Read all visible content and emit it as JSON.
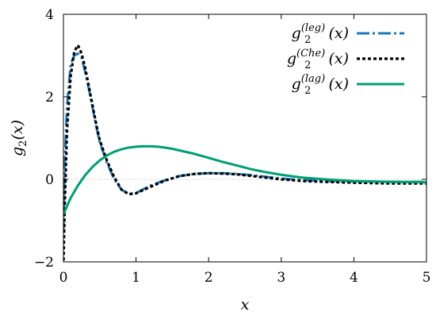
{
  "chart_data": {
    "type": "line",
    "xlabel": "x",
    "ylabel": "g2(x)",
    "ylabel_parts": {
      "base": "g",
      "sub": "2",
      "arg": "(x)"
    },
    "xlim": [
      0,
      5
    ],
    "ylim": [
      -2,
      4
    ],
    "xticks": [
      0,
      1,
      2,
      3,
      4,
      5
    ],
    "yticks": [
      -2,
      0,
      2,
      4
    ],
    "zero_line": true,
    "legend_position": "top-right",
    "series": [
      {
        "name": "g2^(leg)(x)",
        "label_parts": {
          "base": "g",
          "sub": "2",
          "sup": "(leg)",
          "arg": "(x)"
        },
        "color": "#1f78b4",
        "style": "dash-dot",
        "x": [
          0,
          0.02,
          0.05,
          0.1,
          0.15,
          0.2,
          0.25,
          0.3,
          0.35,
          0.4,
          0.45,
          0.5,
          0.6,
          0.7,
          0.8,
          0.9,
          1.0,
          1.2,
          1.4,
          1.6,
          1.8,
          2.0,
          2.2,
          2.4,
          2.6,
          2.8,
          3.0,
          3.3,
          3.6,
          4.0,
          4.5,
          5.0
        ],
        "y": [
          -1.3,
          0.5,
          1.8,
          2.8,
          3.0,
          3.05,
          2.95,
          2.6,
          2.2,
          1.75,
          1.3,
          0.9,
          0.4,
          0.0,
          -0.25,
          -0.35,
          -0.33,
          -0.15,
          -0.02,
          0.08,
          0.13,
          0.15,
          0.15,
          0.13,
          0.1,
          0.06,
          0.02,
          -0.02,
          -0.04,
          -0.05,
          -0.06,
          -0.06
        ]
      },
      {
        "name": "g2^(Che)(x)",
        "label_parts": {
          "base": "g",
          "sub": "2",
          "sup": "(Che)",
          "arg": "(x)"
        },
        "color": "#000000",
        "style": "dotted",
        "x": [
          0,
          0.02,
          0.05,
          0.1,
          0.15,
          0.2,
          0.25,
          0.3,
          0.35,
          0.4,
          0.45,
          0.5,
          0.6,
          0.7,
          0.8,
          0.9,
          1.0,
          1.2,
          1.4,
          1.6,
          1.8,
          2.0,
          2.2,
          2.4,
          2.6,
          2.8,
          3.0,
          3.3,
          3.6,
          4.0,
          4.5,
          5.0
        ],
        "y": [
          -2.1,
          -0.5,
          1.2,
          2.5,
          3.1,
          3.25,
          3.05,
          2.7,
          2.25,
          1.8,
          1.35,
          0.95,
          0.45,
          0.05,
          -0.25,
          -0.36,
          -0.34,
          -0.18,
          -0.03,
          0.08,
          0.13,
          0.15,
          0.14,
          0.12,
          0.08,
          0.04,
          0.0,
          -0.04,
          -0.06,
          -0.08,
          -0.1,
          -0.1
        ]
      },
      {
        "name": "g2^(lag)(x)",
        "label_parts": {
          "base": "g",
          "sub": "2",
          "sup": "(lag)",
          "arg": "(x)"
        },
        "color": "#009e73",
        "style": "solid",
        "x": [
          0,
          0.1,
          0.2,
          0.3,
          0.4,
          0.5,
          0.6,
          0.7,
          0.8,
          0.9,
          1.0,
          1.1,
          1.2,
          1.3,
          1.4,
          1.5,
          1.6,
          1.8,
          2.0,
          2.2,
          2.4,
          2.6,
          2.8,
          3.0,
          3.3,
          3.6,
          4.0,
          4.5,
          5.0
        ],
        "y": [
          -0.85,
          -0.45,
          -0.15,
          0.1,
          0.3,
          0.46,
          0.58,
          0.67,
          0.73,
          0.77,
          0.79,
          0.8,
          0.8,
          0.79,
          0.77,
          0.74,
          0.7,
          0.62,
          0.52,
          0.42,
          0.33,
          0.24,
          0.17,
          0.11,
          0.04,
          0.0,
          -0.04,
          -0.06,
          -0.07
        ]
      }
    ]
  }
}
